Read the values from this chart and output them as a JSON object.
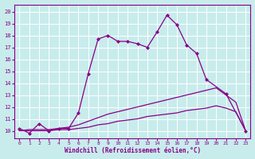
{
  "xlabel": "Windchill (Refroidissement éolien,°C)",
  "bg_color": "#c8ecec",
  "line_color": "#880088",
  "grid_color": "#ffffff",
  "xlim": [
    -0.5,
    23.5
  ],
  "ylim": [
    9.4,
    20.6
  ],
  "yticks": [
    10,
    11,
    12,
    13,
    14,
    15,
    16,
    17,
    18,
    19,
    20
  ],
  "xticks": [
    0,
    1,
    2,
    3,
    4,
    5,
    6,
    7,
    8,
    9,
    10,
    11,
    12,
    13,
    14,
    15,
    16,
    17,
    18,
    19,
    20,
    21,
    22,
    23
  ],
  "line1_x": [
    0,
    1,
    2,
    3,
    4,
    5,
    6,
    7,
    8,
    9,
    10,
    11,
    12,
    13,
    14,
    15,
    16,
    17,
    18,
    19,
    21,
    23
  ],
  "line1_y": [
    10.2,
    9.8,
    10.6,
    10.0,
    10.2,
    10.2,
    11.5,
    14.8,
    17.7,
    18.0,
    17.5,
    17.5,
    17.3,
    17.0,
    18.3,
    19.7,
    18.9,
    17.2,
    16.5,
    14.3,
    13.1,
    10.0
  ],
  "line2_x": [
    0,
    1,
    2,
    3,
    4,
    5,
    6,
    7,
    8,
    9,
    10,
    11,
    12,
    13,
    14,
    15,
    16,
    17,
    18,
    19,
    20,
    21,
    22,
    23
  ],
  "line2_y": [
    10.0,
    10.1,
    10.1,
    10.1,
    10.2,
    10.3,
    10.5,
    10.8,
    11.1,
    11.4,
    11.6,
    11.8,
    12.0,
    12.2,
    12.4,
    12.6,
    12.8,
    13.0,
    13.2,
    13.4,
    13.6,
    13.0,
    12.4,
    10.0
  ],
  "line3_x": [
    0,
    1,
    2,
    3,
    4,
    5,
    6,
    7,
    8,
    9,
    10,
    11,
    12,
    13,
    14,
    15,
    16,
    17,
    18,
    19,
    20,
    21,
    22,
    23
  ],
  "line3_y": [
    10.0,
    10.0,
    10.0,
    10.0,
    10.1,
    10.1,
    10.2,
    10.3,
    10.5,
    10.6,
    10.8,
    10.9,
    11.0,
    11.2,
    11.3,
    11.4,
    11.5,
    11.7,
    11.8,
    11.9,
    12.1,
    11.9,
    11.6,
    10.0
  ]
}
